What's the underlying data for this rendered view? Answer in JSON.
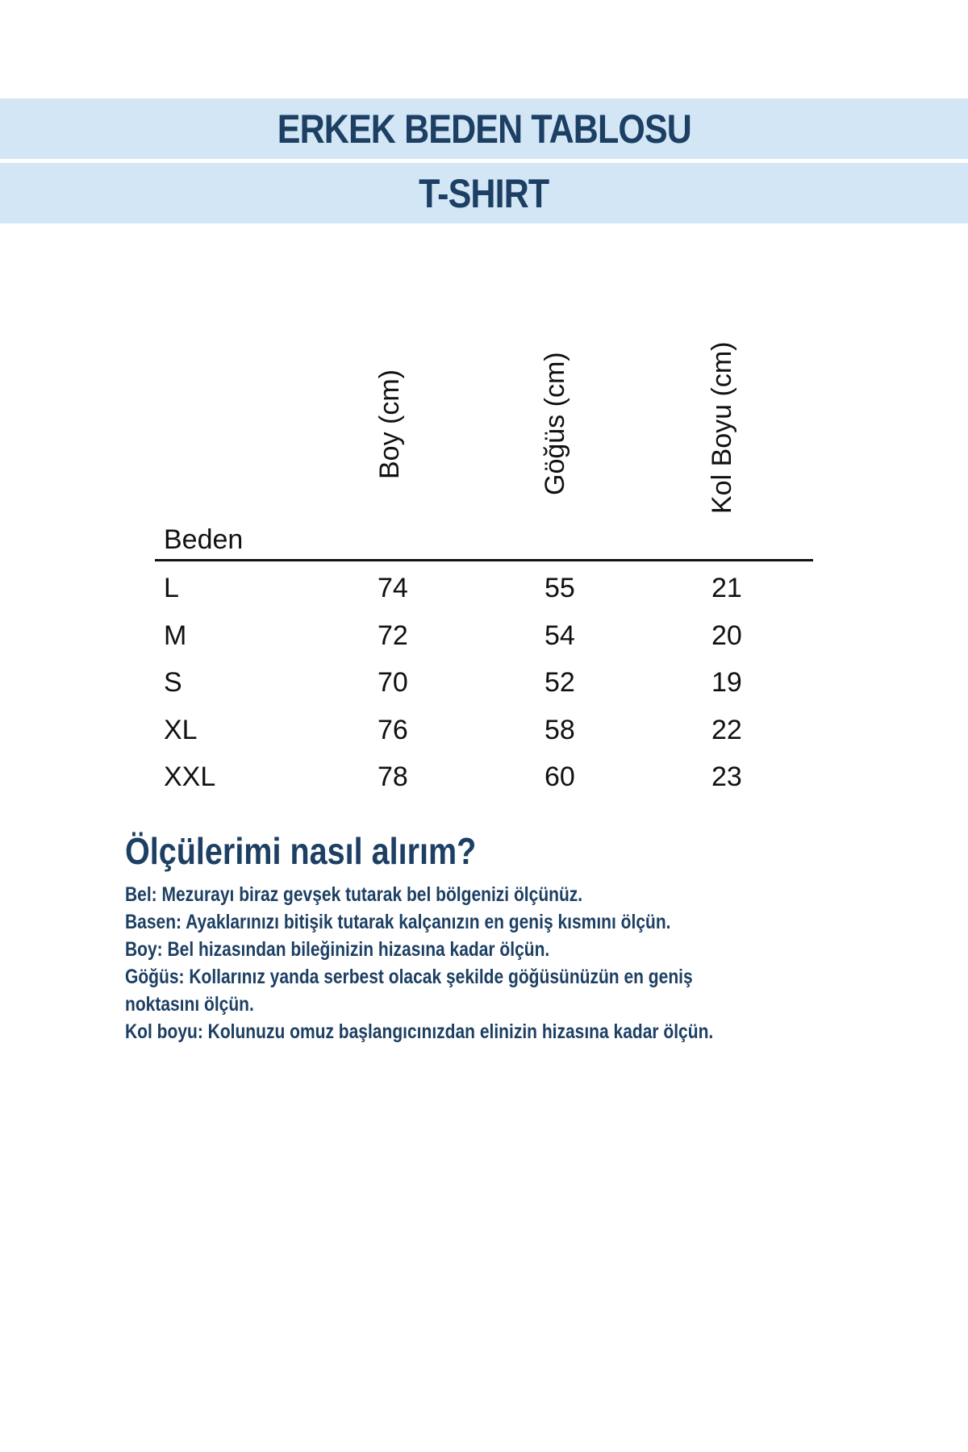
{
  "header": {
    "title": "ERKEK BEDEN TABLOSU",
    "subtitle": "T-SHIRT"
  },
  "table": {
    "columns": [
      "Beden",
      "Boy (cm)",
      "Göğüs (cm)",
      "Kol Boyu (cm)"
    ],
    "rows": [
      [
        "L",
        "74",
        "55",
        "21"
      ],
      [
        "M",
        "72",
        "54",
        "20"
      ],
      [
        "S",
        "70",
        "52",
        "19"
      ],
      [
        "XL",
        "76",
        "58",
        "22"
      ],
      [
        "XXL",
        "78",
        "60",
        "23"
      ]
    ]
  },
  "howto": {
    "heading": "Ölçülerimi nasıl alırım?",
    "lines": [
      "Bel: Mezurayı biraz gevşek tutarak bel bölgenizi ölçünüz.",
      "Basen: Ayaklarınızı bitişik tutarak kalçanızın en geniş kısmını ölçün.",
      "Boy: Bel hizasından bileğinizin hizasına kadar ölçün.",
      "Göğüs: Kollarınız yanda serbest olacak şekilde göğüsünüzün en geniş",
      "noktasını ölçün.",
      "Kol boyu: Kolunuzu omuz başlangıcınızdan elinizin hizasına kadar ölçün."
    ]
  },
  "colors": {
    "band": "#d3e6f6",
    "text": "#1c3f63"
  }
}
